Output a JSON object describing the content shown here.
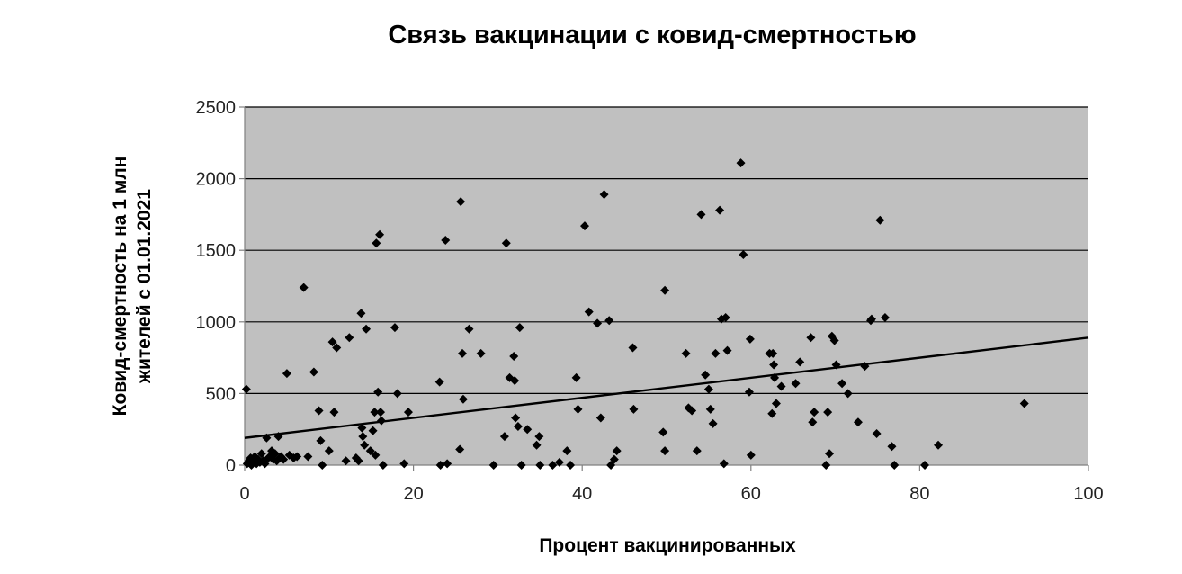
{
  "chart_data": {
    "type": "scatter",
    "title": "Связь вакцинации с ковид-смертностью",
    "xlabel": "Процент вакцинированных",
    "ylabel": [
      "Ковид-смертность на 1 млн",
      "жителей с 01.01.2021"
    ],
    "xlim": [
      0,
      100
    ],
    "ylim": [
      0,
      2500
    ],
    "x_ticks": [
      0,
      20,
      40,
      60,
      80,
      100
    ],
    "y_ticks": [
      0,
      500,
      1000,
      1500,
      2000,
      2500
    ],
    "grid": "horizontal",
    "legend": "none",
    "colors": {
      "plot_bg": "#c0c0c0",
      "marker": "#000000",
      "gridline": "#000000",
      "trend": "#000000"
    },
    "trendline": {
      "x": [
        0,
        100
      ],
      "y": [
        190,
        890
      ]
    },
    "points": [
      [
        0.2,
        530
      ],
      [
        0.3,
        10
      ],
      [
        0.5,
        30
      ],
      [
        0.7,
        50
      ],
      [
        0.8,
        0
      ],
      [
        1,
        20
      ],
      [
        1.2,
        60
      ],
      [
        1.4,
        10
      ],
      [
        1.6,
        40
      ],
      [
        1.8,
        20
      ],
      [
        2,
        80
      ],
      [
        2.2,
        30
      ],
      [
        2.4,
        10
      ],
      [
        2.6,
        190
      ],
      [
        2.8,
        50
      ],
      [
        3,
        60
      ],
      [
        3.2,
        100
      ],
      [
        3.4,
        40
      ],
      [
        3.6,
        80
      ],
      [
        3.8,
        30
      ],
      [
        4,
        200
      ],
      [
        4.3,
        60
      ],
      [
        4.6,
        40
      ],
      [
        5,
        640
      ],
      [
        5.3,
        70
      ],
      [
        5.8,
        50
      ],
      [
        6.2,
        60
      ],
      [
        7,
        1240
      ],
      [
        7.5,
        60
      ],
      [
        8.2,
        650
      ],
      [
        8.8,
        380
      ],
      [
        9,
        170
      ],
      [
        9.2,
        0
      ],
      [
        10,
        100
      ],
      [
        10.4,
        860
      ],
      [
        10.6,
        370
      ],
      [
        10.9,
        820
      ],
      [
        12,
        30
      ],
      [
        12.4,
        890
      ],
      [
        13.2,
        50
      ],
      [
        13.5,
        30
      ],
      [
        13.8,
        1060
      ],
      [
        13.9,
        260
      ],
      [
        14,
        200
      ],
      [
        14.2,
        140
      ],
      [
        14.4,
        950
      ],
      [
        14.9,
        100
      ],
      [
        15.2,
        240
      ],
      [
        15.4,
        370
      ],
      [
        15.5,
        70
      ],
      [
        15.6,
        1550
      ],
      [
        15.8,
        510
      ],
      [
        16,
        1610
      ],
      [
        16.1,
        370
      ],
      [
        16.2,
        310
      ],
      [
        16.4,
        0
      ],
      [
        17.8,
        960
      ],
      [
        18.1,
        500
      ],
      [
        18.9,
        10
      ],
      [
        19.4,
        370
      ],
      [
        23.1,
        580
      ],
      [
        23.2,
        0
      ],
      [
        23.8,
        1570
      ],
      [
        24,
        10
      ],
      [
        25.5,
        110
      ],
      [
        25.6,
        1840
      ],
      [
        25.8,
        780
      ],
      [
        25.9,
        460
      ],
      [
        26.6,
        950
      ],
      [
        28,
        780
      ],
      [
        29.5,
        0
      ],
      [
        30.8,
        200
      ],
      [
        31,
        1550
      ],
      [
        31.4,
        610
      ],
      [
        31.9,
        760
      ],
      [
        32,
        590
      ],
      [
        32.1,
        330
      ],
      [
        32.4,
        270
      ],
      [
        32.6,
        960
      ],
      [
        32.8,
        0
      ],
      [
        33.5,
        250
      ],
      [
        34.6,
        140
      ],
      [
        34.9,
        200
      ],
      [
        35,
        0
      ],
      [
        36.5,
        0
      ],
      [
        37.3,
        20
      ],
      [
        38.2,
        100
      ],
      [
        38.6,
        0
      ],
      [
        39.3,
        610
      ],
      [
        39.5,
        390
      ],
      [
        40.3,
        1670
      ],
      [
        40.8,
        1070
      ],
      [
        41.8,
        990
      ],
      [
        42.2,
        330
      ],
      [
        42.6,
        1890
      ],
      [
        43.2,
        1010
      ],
      [
        43.4,
        0
      ],
      [
        43.8,
        40
      ],
      [
        44.1,
        100
      ],
      [
        46,
        820
      ],
      [
        46.1,
        390
      ],
      [
        49.6,
        230
      ],
      [
        49.8,
        1220
      ],
      [
        49.8,
        100
      ],
      [
        52.3,
        780
      ],
      [
        52.6,
        400
      ],
      [
        53,
        380
      ],
      [
        53.6,
        100
      ],
      [
        54.1,
        1750
      ],
      [
        54.6,
        630
      ],
      [
        55,
        530
      ],
      [
        55.2,
        390
      ],
      [
        55.5,
        290
      ],
      [
        55.8,
        780
      ],
      [
        56.3,
        1780
      ],
      [
        56.5,
        1020
      ],
      [
        56.8,
        10
      ],
      [
        57,
        1030
      ],
      [
        57.2,
        800
      ],
      [
        58.8,
        2110
      ],
      [
        59.1,
        1470
      ],
      [
        59.8,
        510
      ],
      [
        59.9,
        880
      ],
      [
        60,
        70
      ],
      [
        62.2,
        780
      ],
      [
        62.5,
        360
      ],
      [
        62.6,
        780
      ],
      [
        62.7,
        700
      ],
      [
        62.8,
        610
      ],
      [
        63,
        430
      ],
      [
        63.6,
        550
      ],
      [
        65.3,
        570
      ],
      [
        65.8,
        720
      ],
      [
        67.1,
        890
      ],
      [
        67.3,
        300
      ],
      [
        67.5,
        370
      ],
      [
        68.9,
        0
      ],
      [
        69.1,
        370
      ],
      [
        69.3,
        80
      ],
      [
        69.6,
        900
      ],
      [
        69.9,
        870
      ],
      [
        70.1,
        700
      ],
      [
        70.8,
        570
      ],
      [
        71.5,
        500
      ],
      [
        72.7,
        300
      ],
      [
        73.5,
        690
      ],
      [
        74.2,
        1010
      ],
      [
        74.3,
        1020
      ],
      [
        74.9,
        220
      ],
      [
        75.3,
        1710
      ],
      [
        75.9,
        1030
      ],
      [
        76.7,
        130
      ],
      [
        77,
        0
      ],
      [
        80.6,
        0
      ],
      [
        82.2,
        140
      ],
      [
        92.4,
        430
      ]
    ]
  }
}
